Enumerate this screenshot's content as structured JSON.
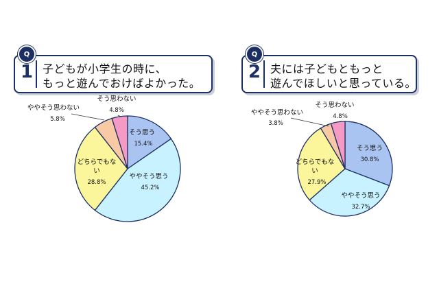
{
  "questions": [
    {
      "badge": "Q",
      "number": "1",
      "line1": "子どもが小学生の時に、",
      "line2": "もっと遊んでおけばよかった。"
    },
    {
      "badge": "Q",
      "number": "2",
      "line1": "夫には子どもともっと",
      "line2": "遊んでほしいと思っている。"
    }
  ],
  "colors": {
    "そう思う": "#a9c4f0",
    "ややそう思う": "#c8f2ff",
    "どちらでもない": "#fbf59c",
    "ややそう思わない": "#f7caa5",
    "そう思わない": "#f49ac4",
    "outline": "#1c2f63"
  },
  "chart_data": [
    {
      "type": "pie",
      "slices": [
        {
          "label": "そう思う",
          "value": 15.4,
          "pct": "15.4%"
        },
        {
          "label": "ややそう思う",
          "value": 45.2,
          "pct": "45.2%"
        },
        {
          "label": "どちらでもない",
          "value": 28.8,
          "pct": "28.8%"
        },
        {
          "label": "ややそう思わない",
          "value": 5.8,
          "pct": "5.8%"
        },
        {
          "label": "そう思わない",
          "value": 4.8,
          "pct": "4.8%"
        }
      ]
    },
    {
      "type": "pie",
      "slices": [
        {
          "label": "そう思う",
          "value": 30.8,
          "pct": "30.8%"
        },
        {
          "label": "ややそう思う",
          "value": 32.7,
          "pct": "32.7%"
        },
        {
          "label": "どちらでもない",
          "value": 27.9,
          "pct": "27.9%"
        },
        {
          "label": "ややそう思わない",
          "value": 3.8,
          "pct": "3.8%"
        },
        {
          "label": "そう思わない",
          "value": 4.8,
          "pct": "4.8%"
        }
      ]
    }
  ]
}
